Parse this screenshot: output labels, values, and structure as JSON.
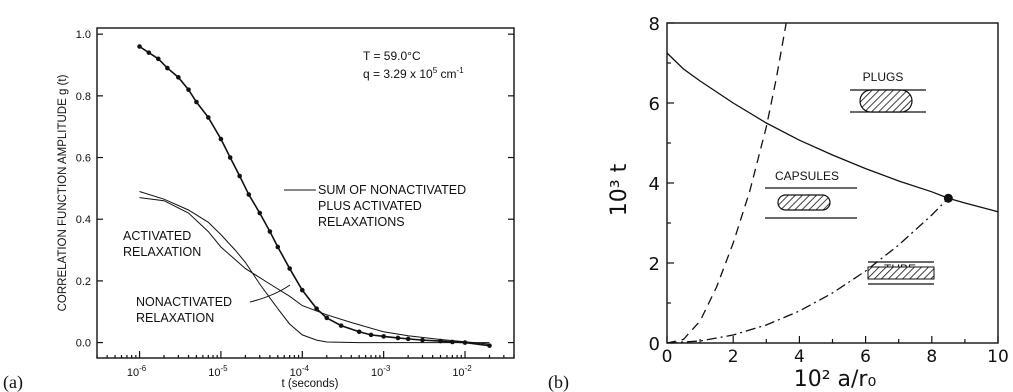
{
  "panels": {
    "a": {
      "label": "(a)"
    },
    "b": {
      "label": "(b)"
    }
  },
  "chart_data": [
    {
      "type": "line",
      "panel": "a",
      "ylabel": "CORRELATION FUNCTION AMPLITUDE  g (t)",
      "xlabel": "t (seconds)",
      "xscale": "log",
      "xlim": [
        3e-07,
        0.04
      ],
      "ylim": [
        -0.05,
        1.02
      ],
      "yticks": [
        0.0,
        0.2,
        0.4,
        0.6,
        0.8,
        1.0
      ],
      "ytick_labels": [
        "0.0",
        "0.2",
        "0.4",
        "0.6",
        "0.8",
        "1.0"
      ],
      "xticks": [
        1e-06,
        1e-05,
        0.0001,
        0.001,
        0.01
      ],
      "xtick_labels": [
        {
          "base": "10",
          "exp": "-6"
        },
        {
          "base": "10",
          "exp": "-5"
        },
        {
          "base": "10",
          "exp": "-4"
        },
        {
          "base": "10",
          "exp": "-3"
        },
        {
          "base": "10",
          "exp": "-2"
        }
      ],
      "info": {
        "temperature": "T = 59.0°C",
        "q_prefix": "q = 3.29 x 10",
        "q_exp": "5",
        "q_unit": " cm",
        "q_unit_exp": "-1"
      },
      "annotations": {
        "sum": [
          "SUM OF NONACTIVATED",
          "PLUS ACTIVATED",
          "RELAXATIONS"
        ],
        "activated": [
          "ACTIVATED",
          "RELAXATION"
        ],
        "nonactivated": [
          "NONACTIVATED",
          "RELAXATION"
        ]
      },
      "series": [
        {
          "style": "markers",
          "x": [
            1e-06,
            1.3e-06,
            1.7e-06,
            2.2e-06,
            3e-06,
            4e-06,
            5e-06,
            7e-06,
            1e-05,
            1.3e-05,
            1.7e-05,
            2.2e-05,
            3e-05,
            4e-05,
            5e-05,
            7e-05,
            0.0001,
            0.00015,
            0.0002,
            0.0003,
            0.0005,
            0.0007,
            0.001,
            0.0015,
            0.002,
            0.003,
            0.005,
            0.007,
            0.01,
            0.02
          ],
          "y": [
            0.96,
            0.94,
            0.92,
            0.89,
            0.86,
            0.82,
            0.78,
            0.73,
            0.66,
            0.6,
            0.54,
            0.48,
            0.42,
            0.36,
            0.31,
            0.24,
            0.17,
            0.11,
            0.08,
            0.055,
            0.035,
            0.025,
            0.02,
            0.015,
            0.012,
            0.008,
            0.005,
            0.002,
            0.0,
            -0.01
          ]
        },
        {
          "style": "line",
          "x": [
            1e-06,
            2e-06,
            4e-06,
            7e-06,
            1e-05,
            2e-05,
            4e-05,
            7e-05,
            0.0001,
            0.0002,
            0.0004,
            0.001,
            0.002,
            0.005,
            0.01,
            0.02
          ],
          "y": [
            0.47,
            0.46,
            0.42,
            0.36,
            0.31,
            0.24,
            0.19,
            0.15,
            0.12,
            0.09,
            0.065,
            0.035,
            0.022,
            0.01,
            0.003,
            -0.005
          ]
        },
        {
          "style": "line",
          "x": [
            1e-06,
            2e-06,
            4e-06,
            7e-06,
            1e-05,
            1.5e-05,
            2e-05,
            3e-05,
            5e-05,
            7e-05,
            0.0001,
            0.00015,
            0.0002,
            0.0005,
            0.001,
            0.02
          ],
          "y": [
            0.49,
            0.465,
            0.43,
            0.39,
            0.35,
            0.3,
            0.26,
            0.19,
            0.11,
            0.06,
            0.025,
            0.008,
            0.002,
            0.0,
            0.0,
            0.0
          ]
        }
      ]
    },
    {
      "type": "line",
      "panel": "b",
      "ylabel": "10³ t",
      "xlabel": "10² a/r₀",
      "xlim": [
        0,
        10
      ],
      "ylim": [
        0,
        8
      ],
      "xticks": [
        0,
        2,
        4,
        6,
        8,
        10
      ],
      "xtick_labels": [
        "0",
        "2",
        "4",
        "6",
        "8",
        "10"
      ],
      "yticks": [
        0,
        2,
        4,
        6,
        8
      ],
      "ytick_labels": [
        "0",
        "2",
        "4",
        "6",
        "8"
      ],
      "regions": {
        "plugs": "PLUGS",
        "capsules": "CAPSULES",
        "tube": "TUBE"
      },
      "point": {
        "x": 8.5,
        "y": 3.62
      },
      "series": [
        {
          "style": "solid",
          "x": [
            0,
            0.5,
            1,
            2,
            3,
            4,
            5,
            6,
            7,
            8,
            8.5,
            9,
            10
          ],
          "y": [
            7.25,
            6.85,
            6.55,
            6.0,
            5.5,
            5.07,
            4.7,
            4.36,
            4.05,
            3.78,
            3.62,
            3.5,
            3.28
          ]
        },
        {
          "style": "dashed",
          "x": [
            0,
            0.5,
            1,
            1.5,
            2,
            2.5,
            3,
            3.3,
            3.6
          ],
          "y": [
            0,
            0.09,
            0.55,
            1.4,
            2.5,
            3.8,
            5.4,
            6.6,
            8.0
          ]
        },
        {
          "style": "dashdot",
          "x": [
            0,
            1,
            2,
            3,
            4,
            5,
            6,
            7,
            8,
            8.5
          ],
          "y": [
            0,
            0.05,
            0.2,
            0.45,
            0.8,
            1.25,
            1.8,
            2.45,
            3.2,
            3.62
          ]
        }
      ]
    }
  ]
}
